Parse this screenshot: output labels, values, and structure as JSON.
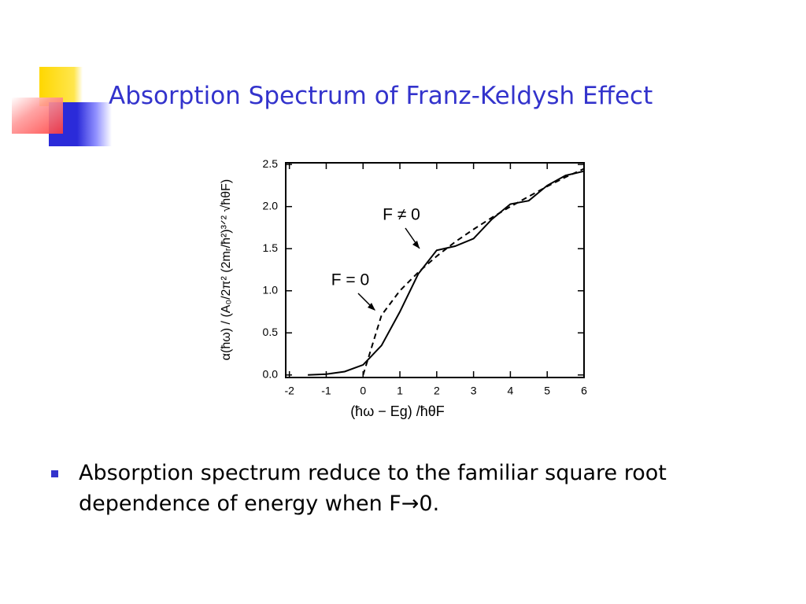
{
  "slide_title": "Absorption Spectrum of Franz-Keldysh Effect",
  "bullet": "Absorption spectrum reduce to the familiar square root dependence of energy when F→0.",
  "chart_data": {
    "type": "line",
    "xlabel": "(ħω − Eg) /ħθF",
    "ylabel": "α(ħω) / (A₀/2π² (2mᵣ/ħ²)³ᐟ² √ħθF)",
    "x": [
      -1.5,
      -1,
      -0.5,
      0,
      0.5,
      1,
      1.5,
      2,
      2.5,
      3,
      3.5,
      4,
      4.5,
      5,
      5.5,
      6
    ],
    "series": [
      {
        "name": "F ≠ 0",
        "color": "#000000",
        "style": "solid",
        "values": [
          0.0,
          0.01,
          0.04,
          0.12,
          0.35,
          0.75,
          1.2,
          1.48,
          1.53,
          1.62,
          1.85,
          2.03,
          2.07,
          2.25,
          2.37,
          2.42
        ]
      },
      {
        "name": "F = 0",
        "color": "#000000",
        "style": "dashed",
        "values": [
          null,
          null,
          null,
          0.0,
          0.71,
          1.0,
          1.22,
          1.41,
          1.58,
          1.73,
          1.87,
          2.0,
          2.12,
          2.24,
          2.35,
          2.45
        ]
      }
    ],
    "xlim": [
      -2.1,
      6
    ],
    "ylim": [
      -0.03,
      2.52
    ],
    "xticks": [
      -2,
      -1,
      0,
      1,
      2,
      3,
      4,
      5,
      6
    ],
    "yticks": [
      {
        "value": 0,
        "label": "0.0"
      },
      0.5,
      {
        "value": 1,
        "label": "1.0"
      },
      1.5,
      {
        "value": 2,
        "label": "2.0"
      },
      2.5
    ]
  }
}
